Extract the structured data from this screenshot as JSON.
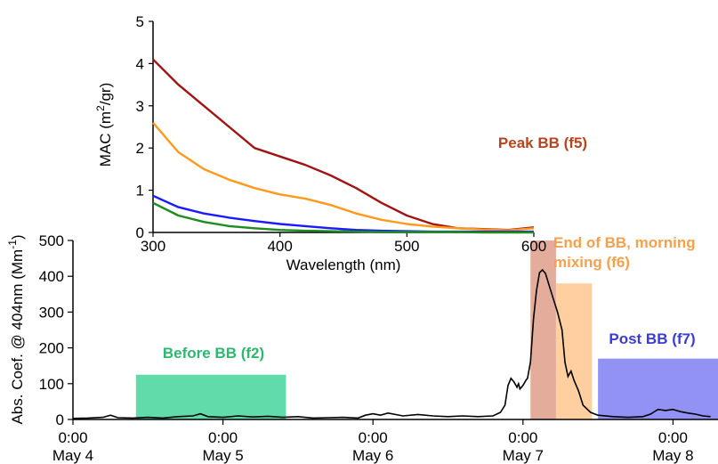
{
  "chart_data": [
    {
      "type": "line",
      "ylabel": "Abs. Coef. @ 404nm (Mm",
      "ylabel_sup": "-1",
      "ylabel_end": ")",
      "ylim": [
        0,
        500
      ],
      "yticks": [
        0,
        100,
        200,
        300,
        400,
        500
      ],
      "xlim": [
        0,
        4.3
      ],
      "xticks": [
        {
          "x": 0,
          "top": "0:00",
          "bottom": "May 4"
        },
        {
          "x": 1,
          "top": "0:00",
          "bottom": "May 5"
        },
        {
          "x": 2,
          "top": "0:00",
          "bottom": "May 6"
        },
        {
          "x": 3,
          "top": "0:00",
          "bottom": "May 7"
        },
        {
          "x": 4,
          "top": "0:00",
          "bottom": "May 8"
        }
      ],
      "series": [
        {
          "color": "#000000",
          "points": [
            [
              0,
              3
            ],
            [
              0.1,
              4
            ],
            [
              0.2,
              6
            ],
            [
              0.25,
              12
            ],
            [
              0.3,
              5
            ],
            [
              0.4,
              4
            ],
            [
              0.5,
              6
            ],
            [
              0.6,
              4
            ],
            [
              0.7,
              8
            ],
            [
              0.8,
              10
            ],
            [
              0.85,
              16
            ],
            [
              0.9,
              8
            ],
            [
              1.0,
              6
            ],
            [
              1.1,
              10
            ],
            [
              1.2,
              7
            ],
            [
              1.3,
              9
            ],
            [
              1.4,
              6
            ],
            [
              1.5,
              8
            ],
            [
              1.6,
              4
            ],
            [
              1.7,
              5
            ],
            [
              1.8,
              6
            ],
            [
              1.9,
              4
            ],
            [
              1.95,
              12
            ],
            [
              2.0,
              16
            ],
            [
              2.05,
              12
            ],
            [
              2.1,
              18
            ],
            [
              2.2,
              10
            ],
            [
              2.3,
              14
            ],
            [
              2.4,
              10
            ],
            [
              2.5,
              8
            ],
            [
              2.6,
              10
            ],
            [
              2.7,
              8
            ],
            [
              2.8,
              10
            ],
            [
              2.85,
              20
            ],
            [
              2.88,
              40
            ],
            [
              2.9,
              95
            ],
            [
              2.92,
              115
            ],
            [
              2.94,
              105
            ],
            [
              2.96,
              90
            ],
            [
              2.97,
              100
            ],
            [
              2.98,
              85
            ],
            [
              3.0,
              95
            ],
            [
              3.02,
              110
            ],
            [
              3.03,
              115
            ],
            [
              3.05,
              160
            ],
            [
              3.07,
              280
            ],
            [
              3.09,
              360
            ],
            [
              3.11,
              410
            ],
            [
              3.13,
              418
            ],
            [
              3.15,
              408
            ],
            [
              3.17,
              380
            ],
            [
              3.2,
              340
            ],
            [
              3.23,
              300
            ],
            [
              3.26,
              250
            ],
            [
              3.28,
              160
            ],
            [
              3.3,
              120
            ],
            [
              3.32,
              135
            ],
            [
              3.34,
              110
            ],
            [
              3.37,
              80
            ],
            [
              3.4,
              40
            ],
            [
              3.45,
              20
            ],
            [
              3.5,
              12
            ],
            [
              3.6,
              8
            ],
            [
              3.7,
              6
            ],
            [
              3.8,
              8
            ],
            [
              3.85,
              15
            ],
            [
              3.9,
              28
            ],
            [
              3.95,
              25
            ],
            [
              4.0,
              28
            ],
            [
              4.05,
              22
            ],
            [
              4.1,
              18
            ],
            [
              4.15,
              15
            ],
            [
              4.2,
              10
            ],
            [
              4.25,
              8
            ]
          ]
        }
      ],
      "regions": [
        {
          "label": "Before BB (f2)",
          "x0": 0.42,
          "x1": 1.42,
          "y0": 0,
          "y1": 125,
          "color": "#2ecf8e",
          "text_color": "#2db86f"
        },
        {
          "label": "Peak BB (f5)",
          "x0": 3.05,
          "x1": 3.22,
          "y0": 0,
          "y1": 500,
          "color": "#d9907a",
          "text_color": "#b7441e"
        },
        {
          "label": "End of BB, morning mixing (f6)",
          "x0": 3.22,
          "x1": 3.46,
          "y0": 0,
          "y1": 380,
          "color": "#ffbf80",
          "text_color": "#f5a04a"
        },
        {
          "label": "Post BB (f7)",
          "x0": 3.5,
          "x1": 4.3,
          "y0": 0,
          "y1": 170,
          "color": "#6d6df0",
          "text_color": "#3b3bd6"
        }
      ]
    },
    {
      "type": "line",
      "xlabel": "Wavelength (nm)",
      "ylabel": "MAC (m",
      "ylabel_sup": "2",
      "ylabel_end": "/gr)",
      "xlim": [
        300,
        600
      ],
      "ylim": [
        0,
        5
      ],
      "xticks": [
        300,
        400,
        500,
        600
      ],
      "yticks": [
        0,
        1,
        2,
        3,
        4,
        5
      ],
      "series": [
        {
          "color": "#a11414",
          "points": [
            [
              300,
              4.1
            ],
            [
              320,
              3.5
            ],
            [
              340,
              3.0
            ],
            [
              360,
              2.5
            ],
            [
              380,
              2.0
            ],
            [
              400,
              1.8
            ],
            [
              420,
              1.6
            ],
            [
              440,
              1.35
            ],
            [
              460,
              1.05
            ],
            [
              480,
              0.7
            ],
            [
              500,
              0.4
            ],
            [
              520,
              0.2
            ],
            [
              540,
              0.1
            ],
            [
              560,
              0.08
            ],
            [
              580,
              0.06
            ],
            [
              600,
              0.12
            ]
          ]
        },
        {
          "color": "#ff9a1a",
          "points": [
            [
              300,
              2.6
            ],
            [
              320,
              1.9
            ],
            [
              340,
              1.5
            ],
            [
              360,
              1.25
            ],
            [
              380,
              1.05
            ],
            [
              400,
              0.9
            ],
            [
              420,
              0.8
            ],
            [
              440,
              0.65
            ],
            [
              460,
              0.45
            ],
            [
              480,
              0.3
            ],
            [
              500,
              0.2
            ],
            [
              520,
              0.14
            ],
            [
              540,
              0.1
            ],
            [
              560,
              0.07
            ],
            [
              580,
              0.05
            ],
            [
              600,
              0.1
            ]
          ]
        },
        {
          "color": "#1a1aff",
          "points": [
            [
              300,
              0.87
            ],
            [
              320,
              0.6
            ],
            [
              340,
              0.45
            ],
            [
              360,
              0.35
            ],
            [
              380,
              0.27
            ],
            [
              400,
              0.2
            ],
            [
              420,
              0.15
            ],
            [
              440,
              0.1
            ],
            [
              460,
              0.06
            ],
            [
              480,
              0.04
            ],
            [
              500,
              0.03
            ],
            [
              520,
              0.02
            ],
            [
              540,
              0.02
            ],
            [
              560,
              0.02
            ],
            [
              580,
              0.02
            ],
            [
              600,
              0.02
            ]
          ]
        },
        {
          "color": "#1e8c1e",
          "points": [
            [
              300,
              0.7
            ],
            [
              320,
              0.4
            ],
            [
              340,
              0.25
            ],
            [
              360,
              0.15
            ],
            [
              380,
              0.1
            ],
            [
              400,
              0.06
            ],
            [
              420,
              0.04
            ],
            [
              440,
              0.03
            ],
            [
              460,
              0.02
            ],
            [
              480,
              0.01
            ],
            [
              500,
              0.01
            ],
            [
              520,
              0.01
            ],
            [
              540,
              0.01
            ],
            [
              560,
              0.0
            ],
            [
              580,
              0.0
            ],
            [
              600,
              0.0
            ]
          ]
        }
      ]
    }
  ]
}
